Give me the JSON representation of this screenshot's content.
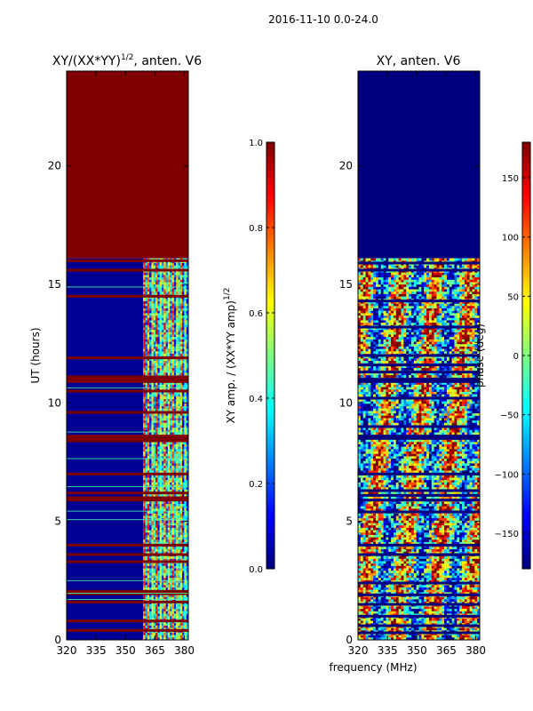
{
  "figure": {
    "suptitle": "2016-11-10 0.0-24.0",
    "shared_xlabel": "frequency (MHz)"
  },
  "colors": {
    "jet_stops": [
      "#00007f",
      "#0000ff",
      "#007fff",
      "#00ffff",
      "#7fff7f",
      "#ffff00",
      "#ff7f00",
      "#ff0000",
      "#7f0000"
    ],
    "line": "#000000"
  },
  "chart_data": [
    {
      "type": "heatmap",
      "title_main": "XY/(XX*YY)",
      "title_exp": "1/2",
      "title_suffix": ", anten. V6",
      "xlabel": "",
      "ylabel": "UT (hours)",
      "xlim": [
        320,
        382
      ],
      "ylim": [
        0,
        24
      ],
      "xticks": [
        320,
        335,
        350,
        365,
        380
      ],
      "yticks": [
        0,
        5,
        10,
        15,
        20
      ],
      "colorbar": {
        "label_main": "XY amp. / (XX*YY amp)",
        "label_exp": "1/2",
        "range": [
          0.0,
          1.0
        ],
        "ticks": [
          "0.0",
          "0.2",
          "0.4",
          "0.6",
          "0.8",
          "1.0"
        ],
        "tick_values": [
          0.0,
          0.2,
          0.4,
          0.6,
          0.8,
          1.0
        ]
      },
      "regions": [
        {
          "name": "no-data-top",
          "y_range": [
            16.1,
            24
          ],
          "value": 1.0
        },
        {
          "name": "low-band",
          "x_range": [
            320,
            359
          ],
          "y_range": [
            0,
            16.1
          ],
          "value": 0.0
        },
        {
          "name": "active-band",
          "x_range": [
            359,
            382
          ],
          "y_range": [
            0,
            16.1
          ],
          "pattern": "striped-0.2-0.8"
        }
      ],
      "saturated_rows_ut": [
        0.4,
        0.8,
        1.6,
        1.95,
        2.05,
        3.3,
        3.6,
        4.0,
        5.9,
        6.0,
        6.2,
        7.0,
        8.4,
        8.5,
        8.6,
        9.6,
        10.5,
        10.9,
        11.0,
        11.1,
        11.9,
        14.5,
        15.6,
        16.0
      ]
    },
    {
      "type": "heatmap",
      "title_main": "XY, anten. V6",
      "xlabel": "",
      "ylabel": "",
      "xlim": [
        320,
        382
      ],
      "ylim": [
        0,
        24
      ],
      "xticks": [
        320,
        335,
        350,
        365,
        380
      ],
      "yticks": [
        0,
        5,
        10,
        15,
        20
      ],
      "colorbar": {
        "label_main": "phase (deg)",
        "range": [
          -180,
          180
        ],
        "ticks": [
          "−150",
          "−100",
          "−50",
          "0",
          "50",
          "100",
          "150"
        ],
        "tick_values": [
          -150,
          -100,
          -50,
          0,
          50,
          100,
          150
        ]
      },
      "regions": [
        {
          "name": "no-data-top",
          "y_range": [
            16.1,
            24
          ],
          "value": -180
        },
        {
          "name": "phase-noise",
          "x_range": [
            320,
            382
          ],
          "y_range": [
            0,
            16.1
          ],
          "pattern": "random-phase"
        }
      ],
      "dark_rows_ut": [
        0.3,
        0.6,
        1.0,
        1.5,
        1.9,
        2.4,
        3.6,
        4.0,
        5.4,
        5.9,
        6.1,
        6.3,
        7.0,
        8.5,
        8.6,
        9.0,
        10.2,
        10.9,
        11.0,
        11.3,
        11.6,
        12.0,
        13.2,
        14.3,
        15.6,
        15.9
      ]
    }
  ]
}
